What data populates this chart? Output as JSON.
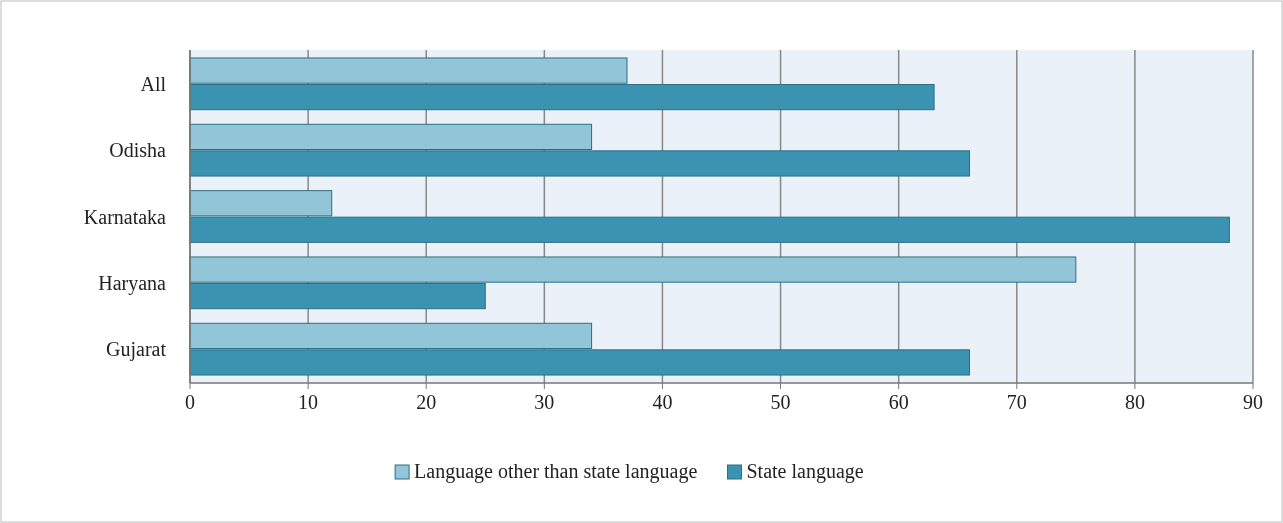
{
  "chart_data": {
    "type": "bar",
    "orientation": "horizontal",
    "categories": [
      "All",
      "Odisha",
      "Karnataka",
      "Haryana",
      "Gujarat"
    ],
    "series": [
      {
        "name": "Language other than state language",
        "color": "#92c5d8",
        "values": [
          37,
          34,
          12,
          75,
          34
        ]
      },
      {
        "name": "State language",
        "color": "#3a93b0",
        "values": [
          63,
          66,
          88,
          25,
          66
        ]
      }
    ],
    "xlim": [
      0,
      90
    ],
    "xticks": [
      0,
      10,
      20,
      30,
      40,
      50,
      60,
      70,
      80,
      90
    ],
    "grid": "x",
    "legend": "bottom"
  }
}
